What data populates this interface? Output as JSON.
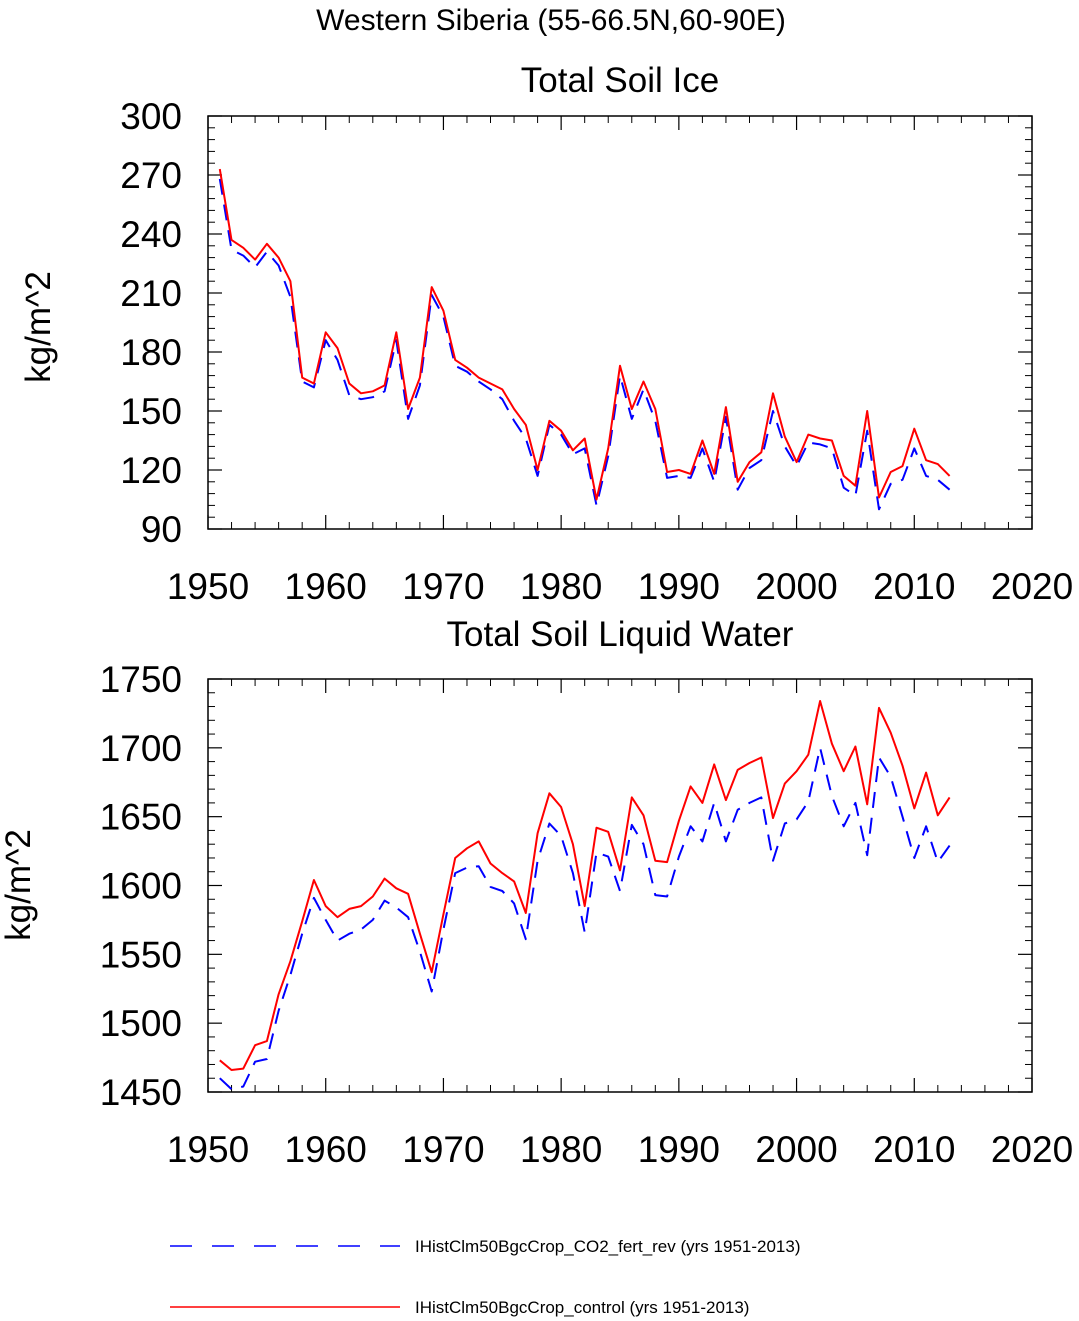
{
  "figure_title": "Western Siberia (55-66.5N,60-90E)",
  "legend": {
    "entries": [
      {
        "label": "IHistClm50BgcCrop_CO2_fert_rev (yrs 1951-2013)",
        "color": "#0000ff",
        "style": "dashed"
      },
      {
        "label": "IHistClm50BgcCrop_control (yrs 1951-2013)",
        "color": "#ff0000",
        "style": "solid"
      }
    ]
  },
  "chart_data": [
    {
      "type": "line",
      "title": "Total Soil Ice",
      "xlabel": "",
      "ylabel": "kg/m^2",
      "xlim": [
        1950,
        2020
      ],
      "ylim": [
        90,
        300
      ],
      "xticks": [
        1950,
        1960,
        1970,
        1980,
        1990,
        2000,
        2010,
        2020
      ],
      "yticks": [
        90,
        120,
        150,
        180,
        210,
        240,
        270,
        300
      ],
      "x": [
        1951,
        1952,
        1953,
        1954,
        1955,
        1956,
        1957,
        1958,
        1959,
        1960,
        1961,
        1962,
        1963,
        1964,
        1965,
        1966,
        1967,
        1968,
        1969,
        1970,
        1971,
        1972,
        1973,
        1974,
        1975,
        1976,
        1977,
        1978,
        1979,
        1980,
        1981,
        1982,
        1983,
        1984,
        1985,
        1986,
        1987,
        1988,
        1989,
        1990,
        1991,
        1992,
        1993,
        1994,
        1995,
        1996,
        1997,
        1998,
        1999,
        2000,
        2001,
        2002,
        2003,
        2004,
        2005,
        2006,
        2007,
        2008,
        2009,
        2010,
        2011,
        2012,
        2013
      ],
      "series": [
        {
          "name": "IHistClm50BgcCrop_CO2_fert_rev (yrs 1951-2013)",
          "color": "#0000ff",
          "style": "dashed",
          "values": [
            268,
            232,
            229,
            223,
            231,
            224,
            208,
            165,
            162,
            186,
            176,
            158,
            156,
            157,
            160,
            186,
            146,
            163,
            209,
            198,
            173,
            170,
            165,
            161,
            156,
            145,
            136,
            117,
            143,
            138,
            128,
            131,
            102,
            127,
            168,
            146,
            161,
            145,
            116,
            117,
            116,
            131,
            114,
            147,
            110,
            121,
            125,
            150,
            132,
            122,
            134,
            133,
            131,
            111,
            107,
            140,
            100,
            113,
            115,
            131,
            117,
            115,
            110
          ]
        },
        {
          "name": "IHistClm50BgcCrop_control (yrs 1951-2013)",
          "color": "#ff0000",
          "style": "solid",
          "values": [
            273,
            237,
            233,
            227,
            235,
            228,
            216,
            167,
            164,
            190,
            182,
            164,
            159,
            160,
            163,
            190,
            151,
            167,
            213,
            201,
            176,
            172,
            167,
            164,
            161,
            151,
            143,
            120,
            145,
            140,
            130,
            136,
            105,
            131,
            173,
            151,
            165,
            151,
            119,
            120,
            118,
            135,
            118,
            152,
            114,
            124,
            129,
            159,
            137,
            124,
            138,
            136,
            135,
            117,
            112,
            150,
            106,
            119,
            122,
            141,
            125,
            123,
            117
          ]
        }
      ]
    },
    {
      "type": "line",
      "title": "Total Soil Liquid Water",
      "xlabel": "",
      "ylabel": "kg/m^2",
      "xlim": [
        1950,
        2020
      ],
      "ylim": [
        1450,
        1750
      ],
      "xticks": [
        1950,
        1960,
        1970,
        1980,
        1990,
        2000,
        2010,
        2020
      ],
      "yticks": [
        1450,
        1500,
        1550,
        1600,
        1650,
        1700,
        1750
      ],
      "x": [
        1951,
        1952,
        1953,
        1954,
        1955,
        1956,
        1957,
        1958,
        1959,
        1960,
        1961,
        1962,
        1963,
        1964,
        1965,
        1966,
        1967,
        1968,
        1969,
        1970,
        1971,
        1972,
        1973,
        1974,
        1975,
        1976,
        1977,
        1978,
        1979,
        1980,
        1981,
        1982,
        1983,
        1984,
        1985,
        1986,
        1987,
        1988,
        1989,
        1990,
        1991,
        1992,
        1993,
        1994,
        1995,
        1996,
        1997,
        1998,
        1999,
        2000,
        2001,
        2002,
        2003,
        2004,
        2005,
        2006,
        2007,
        2008,
        2009,
        2010,
        2011,
        2012,
        2013
      ],
      "series": [
        {
          "name": "IHistClm50BgcCrop_CO2_fert_rev (yrs 1951-2013)",
          "color": "#0000ff",
          "style": "dashed",
          "values": [
            1460,
            1452,
            1454,
            1472,
            1474,
            1509,
            1535,
            1565,
            1591,
            1575,
            1560,
            1565,
            1568,
            1575,
            1589,
            1584,
            1577,
            1552,
            1523,
            1568,
            1609,
            1613,
            1614,
            1599,
            1596,
            1587,
            1561,
            1618,
            1645,
            1636,
            1609,
            1566,
            1624,
            1621,
            1596,
            1644,
            1630,
            1593,
            1592,
            1621,
            1643,
            1632,
            1660,
            1632,
            1655,
            1660,
            1664,
            1618,
            1645,
            1648,
            1661,
            1700,
            1665,
            1643,
            1660,
            1622,
            1693,
            1679,
            1650,
            1620,
            1643,
            1617,
            1629
          ]
        },
        {
          "name": "IHistClm50BgcCrop_control (yrs 1951-2013)",
          "color": "#ff0000",
          "style": "solid",
          "values": [
            1473,
            1466,
            1467,
            1484,
            1487,
            1521,
            1545,
            1574,
            1604,
            1585,
            1577,
            1583,
            1585,
            1592,
            1605,
            1598,
            1594,
            1565,
            1537,
            1579,
            1620,
            1627,
            1632,
            1616,
            1609,
            1603,
            1580,
            1638,
            1667,
            1657,
            1630,
            1585,
            1642,
            1639,
            1611,
            1664,
            1651,
            1618,
            1617,
            1647,
            1672,
            1660,
            1688,
            1662,
            1684,
            1689,
            1693,
            1649,
            1674,
            1683,
            1695,
            1734,
            1703,
            1683,
            1701,
            1659,
            1729,
            1711,
            1687,
            1656,
            1682,
            1651,
            1664
          ]
        }
      ]
    }
  ]
}
